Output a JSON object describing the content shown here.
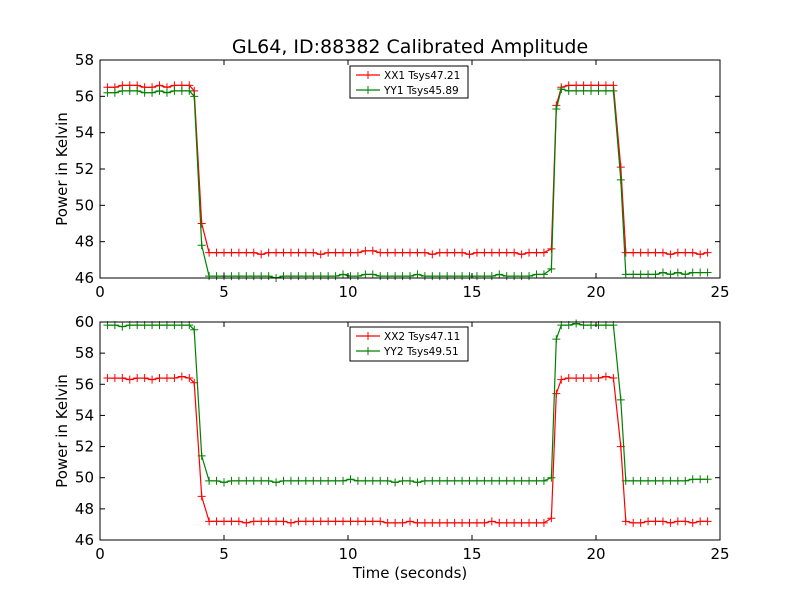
{
  "figure": {
    "title": "GL64, ID:88382 Calibrated Amplitude"
  },
  "chart_data": [
    {
      "type": "line",
      "title": "GL64, ID:88382 Calibrated Amplitude",
      "xlabel": "",
      "ylabel": "Power in Kelvin",
      "xlim": [
        0,
        25
      ],
      "ylim": [
        46,
        58
      ],
      "xticks": [
        0,
        5,
        10,
        15,
        20,
        25
      ],
      "yticks": [
        46,
        48,
        50,
        52,
        54,
        56,
        58
      ],
      "xtick_labels": [
        "0",
        "5",
        "10",
        "15",
        "20",
        "25"
      ],
      "ytick_labels": [
        "46",
        "48",
        "50",
        "52",
        "54",
        "56",
        "58"
      ],
      "legend_position": "top-center",
      "grid": false,
      "series": [
        {
          "name": "XX1 Tsys47.21",
          "color": "#ff0000",
          "x": [
            0.3,
            0.6,
            0.9,
            1.2,
            1.5,
            1.8,
            2.1,
            2.4,
            2.7,
            3.0,
            3.3,
            3.6,
            3.8,
            4.1,
            4.4,
            4.7,
            5.0,
            5.3,
            5.6,
            5.9,
            6.2,
            6.5,
            6.8,
            7.1,
            7.4,
            7.7,
            8.0,
            8.3,
            8.6,
            8.9,
            9.2,
            9.5,
            9.8,
            10.1,
            10.4,
            10.7,
            11.0,
            11.3,
            11.6,
            11.9,
            12.2,
            12.5,
            12.8,
            13.1,
            13.4,
            13.7,
            14.0,
            14.3,
            14.6,
            14.9,
            15.2,
            15.5,
            15.8,
            16.1,
            16.4,
            16.7,
            17.0,
            17.3,
            17.6,
            17.9,
            18.2,
            18.4,
            18.6,
            18.9,
            19.2,
            19.5,
            19.8,
            20.1,
            20.4,
            20.7,
            21.0,
            21.2,
            21.5,
            21.8,
            22.1,
            22.4,
            22.7,
            23.0,
            23.3,
            23.6,
            23.9,
            24.2,
            24.5
          ],
          "y": [
            56.5,
            56.5,
            56.6,
            56.6,
            56.6,
            56.5,
            56.5,
            56.6,
            56.5,
            56.6,
            56.6,
            56.6,
            56.3,
            49.0,
            47.4,
            47.4,
            47.4,
            47.4,
            47.4,
            47.4,
            47.4,
            47.3,
            47.4,
            47.4,
            47.4,
            47.4,
            47.4,
            47.4,
            47.4,
            47.3,
            47.4,
            47.4,
            47.4,
            47.4,
            47.4,
            47.5,
            47.5,
            47.4,
            47.4,
            47.4,
            47.4,
            47.4,
            47.4,
            47.4,
            47.3,
            47.4,
            47.4,
            47.4,
            47.4,
            47.3,
            47.4,
            47.4,
            47.4,
            47.4,
            47.4,
            47.4,
            47.3,
            47.4,
            47.4,
            47.4,
            47.6,
            55.5,
            56.5,
            56.6,
            56.6,
            56.6,
            56.6,
            56.6,
            56.6,
            56.6,
            52.1,
            47.4,
            47.4,
            47.4,
            47.4,
            47.4,
            47.4,
            47.3,
            47.4,
            47.4,
            47.4,
            47.3,
            47.4
          ]
        },
        {
          "name": "YY1 Tsys45.89",
          "color": "#008000",
          "x": [
            0.3,
            0.6,
            0.9,
            1.2,
            1.5,
            1.8,
            2.1,
            2.4,
            2.7,
            3.0,
            3.3,
            3.6,
            3.8,
            4.1,
            4.4,
            4.7,
            5.0,
            5.3,
            5.6,
            5.9,
            6.2,
            6.5,
            6.8,
            7.1,
            7.4,
            7.7,
            8.0,
            8.3,
            8.6,
            8.9,
            9.2,
            9.5,
            9.8,
            10.1,
            10.4,
            10.7,
            11.0,
            11.3,
            11.6,
            11.9,
            12.2,
            12.5,
            12.8,
            13.1,
            13.4,
            13.7,
            14.0,
            14.3,
            14.6,
            14.9,
            15.2,
            15.5,
            15.8,
            16.1,
            16.4,
            16.7,
            17.0,
            17.3,
            17.6,
            17.9,
            18.2,
            18.4,
            18.6,
            18.9,
            19.2,
            19.5,
            19.8,
            20.1,
            20.4,
            20.7,
            21.0,
            21.2,
            21.5,
            21.8,
            22.1,
            22.4,
            22.7,
            23.0,
            23.3,
            23.6,
            23.9,
            24.2,
            24.5
          ],
          "y": [
            56.2,
            56.2,
            56.3,
            56.3,
            56.3,
            56.2,
            56.2,
            56.3,
            56.2,
            56.3,
            56.3,
            56.3,
            56.0,
            47.8,
            46.1,
            46.1,
            46.1,
            46.1,
            46.1,
            46.1,
            46.1,
            46.1,
            46.1,
            46.0,
            46.1,
            46.1,
            46.1,
            46.1,
            46.1,
            46.1,
            46.1,
            46.1,
            46.2,
            46.1,
            46.1,
            46.2,
            46.2,
            46.1,
            46.1,
            46.1,
            46.1,
            46.1,
            46.2,
            46.1,
            46.1,
            46.1,
            46.1,
            46.1,
            46.1,
            46.1,
            46.1,
            46.1,
            46.1,
            46.2,
            46.1,
            46.1,
            46.1,
            46.1,
            46.2,
            46.2,
            46.5,
            55.3,
            56.4,
            56.3,
            56.3,
            56.3,
            56.3,
            56.3,
            56.3,
            56.3,
            51.4,
            46.2,
            46.2,
            46.2,
            46.2,
            46.2,
            46.3,
            46.2,
            46.3,
            46.2,
            46.3,
            46.3,
            46.3
          ]
        }
      ]
    },
    {
      "type": "line",
      "title": "",
      "xlabel": "Time (seconds)",
      "ylabel": "Power in Kelvin",
      "xlim": [
        0,
        25
      ],
      "ylim": [
        46,
        60
      ],
      "xticks": [
        0,
        5,
        10,
        15,
        20,
        25
      ],
      "yticks": [
        46,
        48,
        50,
        52,
        54,
        56,
        58,
        60
      ],
      "xtick_labels": [
        "0",
        "5",
        "10",
        "15",
        "20",
        "25"
      ],
      "ytick_labels": [
        "46",
        "48",
        "50",
        "52",
        "54",
        "56",
        "58",
        "60"
      ],
      "legend_position": "top-center",
      "grid": false,
      "series": [
        {
          "name": "XX2 Tsys47.11",
          "color": "#ff0000",
          "x": [
            0.3,
            0.6,
            0.9,
            1.2,
            1.5,
            1.8,
            2.1,
            2.4,
            2.7,
            3.0,
            3.3,
            3.6,
            3.8,
            4.1,
            4.4,
            4.7,
            5.0,
            5.3,
            5.6,
            5.9,
            6.2,
            6.5,
            6.8,
            7.1,
            7.4,
            7.7,
            8.0,
            8.3,
            8.6,
            8.9,
            9.2,
            9.5,
            9.8,
            10.1,
            10.4,
            10.7,
            11.0,
            11.3,
            11.6,
            11.9,
            12.2,
            12.5,
            12.8,
            13.1,
            13.4,
            13.7,
            14.0,
            14.3,
            14.6,
            14.9,
            15.2,
            15.5,
            15.8,
            16.1,
            16.4,
            16.7,
            17.0,
            17.3,
            17.6,
            17.9,
            18.2,
            18.4,
            18.6,
            18.9,
            19.2,
            19.5,
            19.8,
            20.1,
            20.4,
            20.7,
            21.0,
            21.2,
            21.5,
            21.8,
            22.1,
            22.4,
            22.7,
            23.0,
            23.3,
            23.6,
            23.9,
            24.2,
            24.5
          ],
          "y": [
            56.4,
            56.4,
            56.4,
            56.3,
            56.4,
            56.4,
            56.3,
            56.4,
            56.4,
            56.4,
            56.5,
            56.4,
            56.1,
            48.8,
            47.2,
            47.2,
            47.2,
            47.2,
            47.2,
            47.1,
            47.2,
            47.2,
            47.2,
            47.2,
            47.2,
            47.1,
            47.2,
            47.2,
            47.2,
            47.2,
            47.2,
            47.2,
            47.2,
            47.2,
            47.2,
            47.2,
            47.2,
            47.2,
            47.1,
            47.1,
            47.1,
            47.2,
            47.1,
            47.1,
            47.1,
            47.1,
            47.1,
            47.1,
            47.1,
            47.1,
            47.1,
            47.1,
            47.2,
            47.1,
            47.1,
            47.1,
            47.1,
            47.1,
            47.1,
            47.1,
            47.4,
            55.4,
            56.3,
            56.4,
            56.4,
            56.4,
            56.4,
            56.4,
            56.5,
            56.4,
            52.0,
            47.2,
            47.1,
            47.1,
            47.2,
            47.2,
            47.2,
            47.1,
            47.2,
            47.2,
            47.1,
            47.2,
            47.2
          ]
        },
        {
          "name": "YY2 Tsys49.51",
          "color": "#008000",
          "x": [
            0.3,
            0.6,
            0.9,
            1.2,
            1.5,
            1.8,
            2.1,
            2.4,
            2.7,
            3.0,
            3.3,
            3.6,
            3.8,
            4.1,
            4.4,
            4.7,
            5.0,
            5.3,
            5.6,
            5.9,
            6.2,
            6.5,
            6.8,
            7.1,
            7.4,
            7.7,
            8.0,
            8.3,
            8.6,
            8.9,
            9.2,
            9.5,
            9.8,
            10.1,
            10.4,
            10.7,
            11.0,
            11.3,
            11.6,
            11.9,
            12.2,
            12.5,
            12.8,
            13.1,
            13.4,
            13.7,
            14.0,
            14.3,
            14.6,
            14.9,
            15.2,
            15.5,
            15.8,
            16.1,
            16.4,
            16.7,
            17.0,
            17.3,
            17.6,
            17.9,
            18.2,
            18.4,
            18.6,
            18.9,
            19.2,
            19.5,
            19.8,
            20.1,
            20.4,
            20.7,
            21.0,
            21.2,
            21.5,
            21.8,
            22.1,
            22.4,
            22.7,
            23.0,
            23.3,
            23.6,
            23.9,
            24.2,
            24.5
          ],
          "y": [
            59.8,
            59.8,
            59.7,
            59.8,
            59.8,
            59.8,
            59.8,
            59.8,
            59.8,
            59.8,
            59.8,
            59.8,
            59.5,
            51.4,
            49.8,
            49.8,
            49.7,
            49.8,
            49.8,
            49.8,
            49.8,
            49.8,
            49.8,
            49.7,
            49.8,
            49.8,
            49.8,
            49.8,
            49.8,
            49.8,
            49.8,
            49.8,
            49.8,
            49.9,
            49.8,
            49.8,
            49.8,
            49.8,
            49.8,
            49.7,
            49.8,
            49.8,
            49.7,
            49.8,
            49.8,
            49.8,
            49.8,
            49.8,
            49.8,
            49.8,
            49.8,
            49.8,
            49.8,
            49.8,
            49.8,
            49.8,
            49.8,
            49.8,
            49.8,
            49.8,
            50.0,
            58.9,
            59.8,
            59.8,
            59.9,
            59.8,
            59.8,
            59.8,
            59.8,
            59.8,
            55.0,
            49.8,
            49.8,
            49.8,
            49.8,
            49.8,
            49.8,
            49.8,
            49.8,
            49.8,
            49.9,
            49.9,
            49.9
          ]
        }
      ]
    }
  ]
}
